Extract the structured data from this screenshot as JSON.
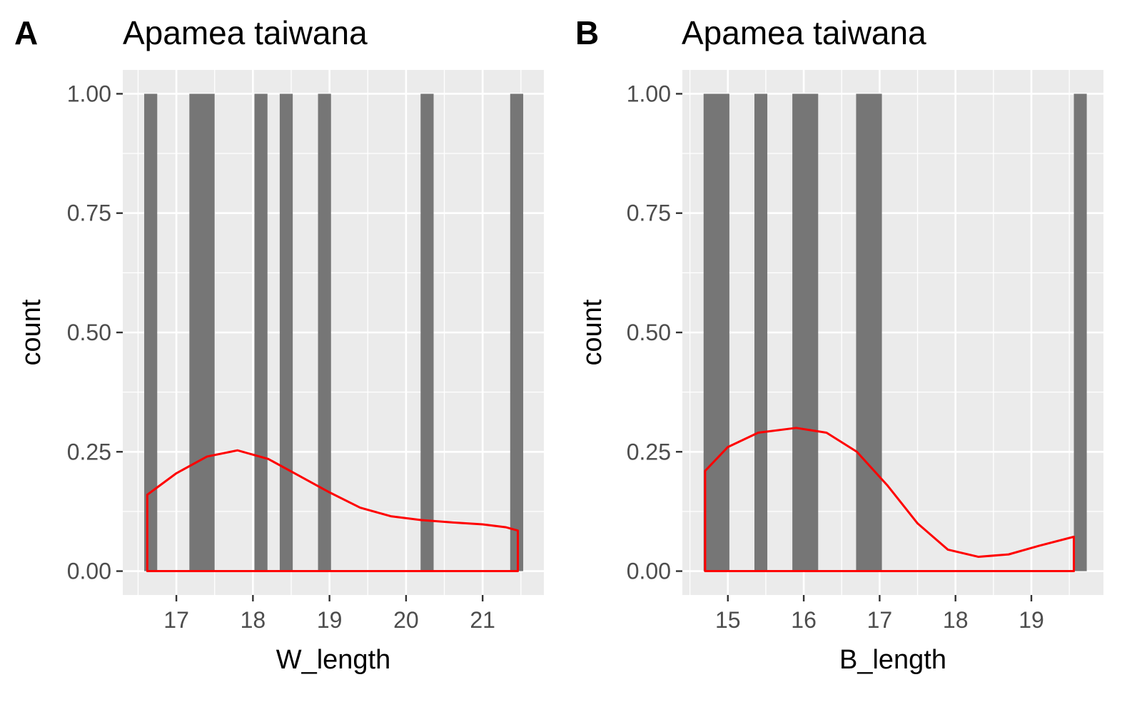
{
  "chart_data": [
    {
      "type": "bar",
      "panel": "A",
      "title": "Apamea taiwana",
      "xlabel": "W_length",
      "ylabel": "count",
      "xlim": [
        16.3,
        21.8
      ],
      "ylim": [
        -0.05,
        1.05
      ],
      "x_ticks": [
        17,
        18,
        19,
        20,
        21
      ],
      "x_tick_labels": [
        "17",
        "18",
        "19",
        "20",
        "21"
      ],
      "y_ticks": [
        0,
        0.25,
        0.5,
        0.75,
        1
      ],
      "y_tick_labels": [
        "0.00",
        "0.25",
        "0.50",
        "0.75",
        "1.00"
      ],
      "grid": true,
      "bars": [
        {
          "x0": 16.58,
          "x1": 16.75,
          "count": 1
        },
        {
          "x0": 17.17,
          "x1": 17.5,
          "count": 1
        },
        {
          "x0": 18.02,
          "x1": 18.19,
          "count": 1
        },
        {
          "x0": 18.35,
          "x1": 18.52,
          "count": 1
        },
        {
          "x0": 18.85,
          "x1": 19.02,
          "count": 1
        },
        {
          "x0": 20.19,
          "x1": 20.36,
          "count": 1
        },
        {
          "x0": 21.36,
          "x1": 21.53,
          "count": 1
        }
      ],
      "density": {
        "color": "#ff0000",
        "points": [
          [
            16.62,
            0.16
          ],
          [
            17.0,
            0.205
          ],
          [
            17.4,
            0.24
          ],
          [
            17.8,
            0.253
          ],
          [
            18.2,
            0.235
          ],
          [
            18.6,
            0.2
          ],
          [
            19.0,
            0.165
          ],
          [
            19.4,
            0.133
          ],
          [
            19.8,
            0.115
          ],
          [
            20.2,
            0.107
          ],
          [
            20.6,
            0.102
          ],
          [
            21.0,
            0.098
          ],
          [
            21.3,
            0.092
          ],
          [
            21.46,
            0.085
          ]
        ]
      }
    },
    {
      "type": "bar",
      "panel": "B",
      "title": "Apamea taiwana",
      "xlabel": "B_length",
      "ylabel": "count",
      "xlim": [
        14.4,
        19.95
      ],
      "ylim": [
        -0.05,
        1.05
      ],
      "x_ticks": [
        15,
        16,
        17,
        18,
        19
      ],
      "x_tick_labels": [
        "15",
        "16",
        "17",
        "18",
        "19"
      ],
      "y_ticks": [
        0,
        0.25,
        0.5,
        0.75,
        1
      ],
      "y_tick_labels": [
        "0.00",
        "0.25",
        "0.50",
        "0.75",
        "1.00"
      ],
      "grid": true,
      "bars": [
        {
          "x0": 14.68,
          "x1": 15.02,
          "count": 1
        },
        {
          "x0": 15.35,
          "x1": 15.52,
          "count": 1
        },
        {
          "x0": 15.85,
          "x1": 16.19,
          "count": 1
        },
        {
          "x0": 16.69,
          "x1": 17.03,
          "count": 1
        },
        {
          "x0": 19.56,
          "x1": 19.73,
          "count": 1
        }
      ],
      "density": {
        "color": "#ff0000",
        "points": [
          [
            14.7,
            0.21
          ],
          [
            15.0,
            0.26
          ],
          [
            15.4,
            0.29
          ],
          [
            15.9,
            0.3
          ],
          [
            16.3,
            0.29
          ],
          [
            16.7,
            0.25
          ],
          [
            17.1,
            0.18
          ],
          [
            17.5,
            0.1
          ],
          [
            17.9,
            0.045
          ],
          [
            18.3,
            0.03
          ],
          [
            18.7,
            0.035
          ],
          [
            19.1,
            0.053
          ],
          [
            19.56,
            0.072
          ]
        ]
      }
    }
  ]
}
